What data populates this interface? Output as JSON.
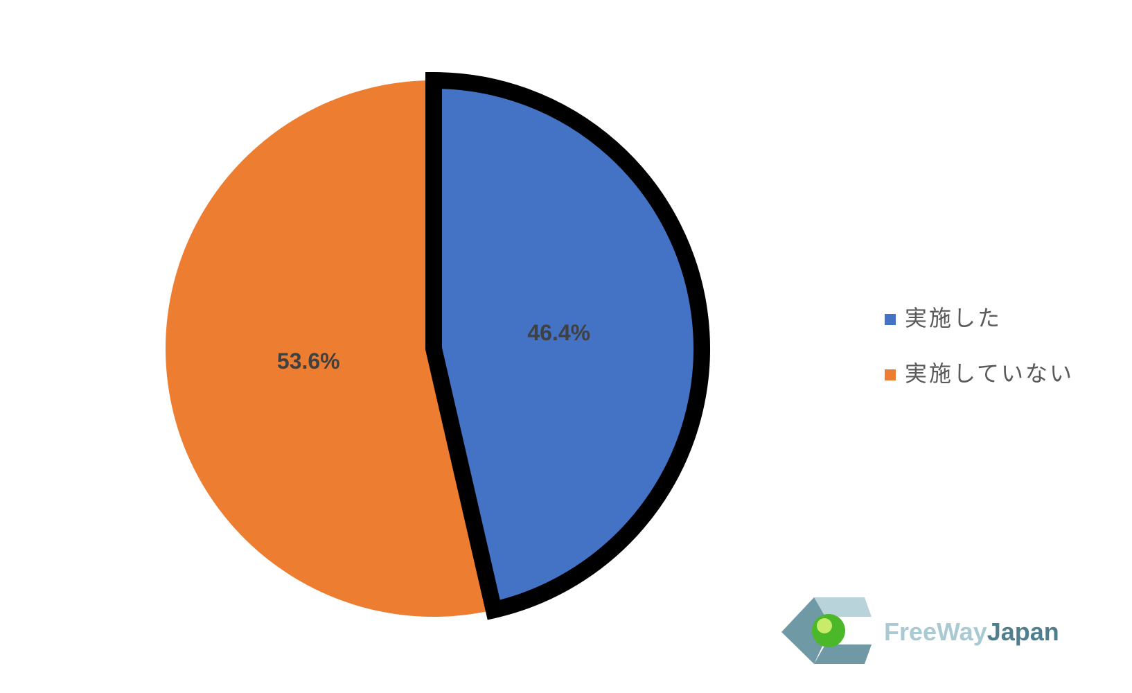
{
  "chart_data": {
    "type": "pie",
    "categories": [
      "実施した",
      "実施していない"
    ],
    "values": [
      46.4,
      53.6
    ],
    "value_labels": [
      "46.4%",
      "53.6%"
    ],
    "colors": [
      "#4472c4",
      "#ed7d31"
    ],
    "edgecolors": [
      "#000000",
      "none"
    ],
    "legend": "right",
    "annotations": [
      "FreeWay",
      "Japan"
    ]
  }
}
